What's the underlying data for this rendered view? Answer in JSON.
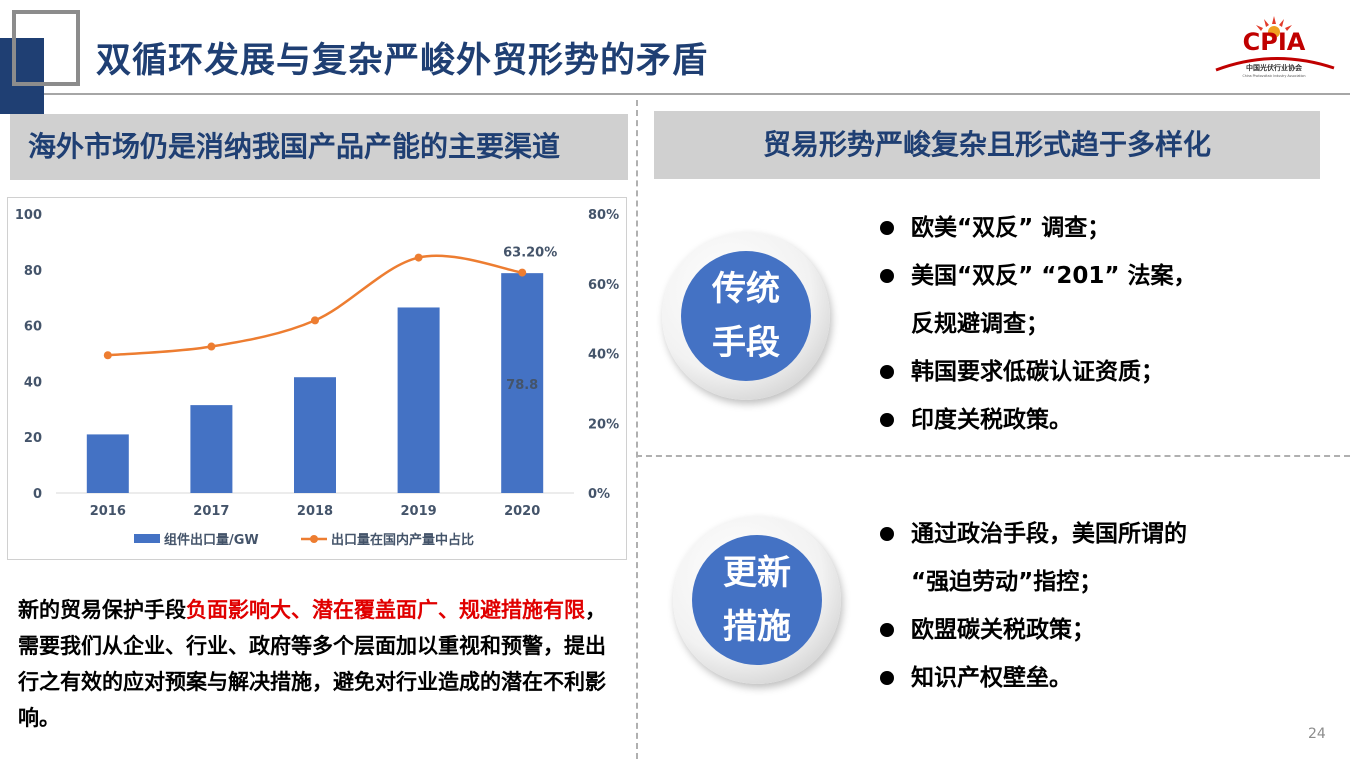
{
  "slide": {
    "title": "双循环发展与复杂严峻外贸形势的矛盾",
    "page_number": "24",
    "logo": {
      "text": "CPIA",
      "sub_cn": "中国光伏行业协会",
      "sub_en": "China Photovoltaic Industry Association",
      "color": "#c00000"
    }
  },
  "left": {
    "banner": "海外市场仍是消纳我国产品产能的主要渠道",
    "paragraph": [
      {
        "text": "新的贸易保护手段",
        "highlight": false
      },
      {
        "text": "负面影响大、潜在覆盖面广、规避措施有限",
        "highlight": true
      },
      {
        "text": "，需要我们从企业、行业、政府等多个层面加以重视和预警，提出行之有效的应对预案与解决措施，避免对行业造成的潜在不利影响。",
        "highlight": false
      }
    ]
  },
  "right": {
    "banner": "贸易形势严峻复杂且形式趋于多样化",
    "traditional": {
      "label_line1": "传统",
      "label_line2": "手段",
      "items": [
        {
          "text": "欧美“双反” 调查；",
          "bullet": true
        },
        {
          "text": "美国“双反” “201” 法案，",
          "bullet": true
        },
        {
          "text": "反规避调查；",
          "bullet": false
        },
        {
          "text": "韩国要求低碳认证资质；",
          "bullet": true
        },
        {
          "text": "印度关税政策。",
          "bullet": true
        }
      ]
    },
    "new": {
      "label_line1": "更新",
      "label_line2": "措施",
      "items": [
        {
          "text": "通过政治手段，美国所谓的",
          "bullet": true
        },
        {
          "text": "“强迫劳动”指控；",
          "bullet": false
        },
        {
          "text": "欧盟碳关税政策；",
          "bullet": true
        },
        {
          "text": "知识产权壁垒。",
          "bullet": true
        }
      ]
    }
  },
  "chart_data": {
    "type": "bar",
    "categories": [
      "2016",
      "2017",
      "2018",
      "2019",
      "2020"
    ],
    "series": [
      {
        "name": "组件出口量/GW",
        "type": "bar",
        "axis": "left",
        "values": [
          21,
          31.5,
          41.5,
          66.5,
          78.8
        ],
        "color": "#4472c4"
      },
      {
        "name": "出口量在国内产量中占比",
        "type": "line",
        "axis": "right",
        "values": [
          39.5,
          42,
          49.5,
          67.5,
          63.2
        ],
        "color": "#ed7d31"
      }
    ],
    "y_left": {
      "min": 0,
      "max": 100,
      "ticks": [
        "0",
        "20",
        "40",
        "60",
        "80",
        "100"
      ]
    },
    "y_right": {
      "min": 0,
      "max": 80,
      "ticks": [
        "0%",
        "20%",
        "40%",
        "60%",
        "80%"
      ]
    },
    "data_labels": {
      "bar_2020": "78.8",
      "line_2020": "63.20%"
    },
    "legend_position": "bottom",
    "grid": false
  }
}
